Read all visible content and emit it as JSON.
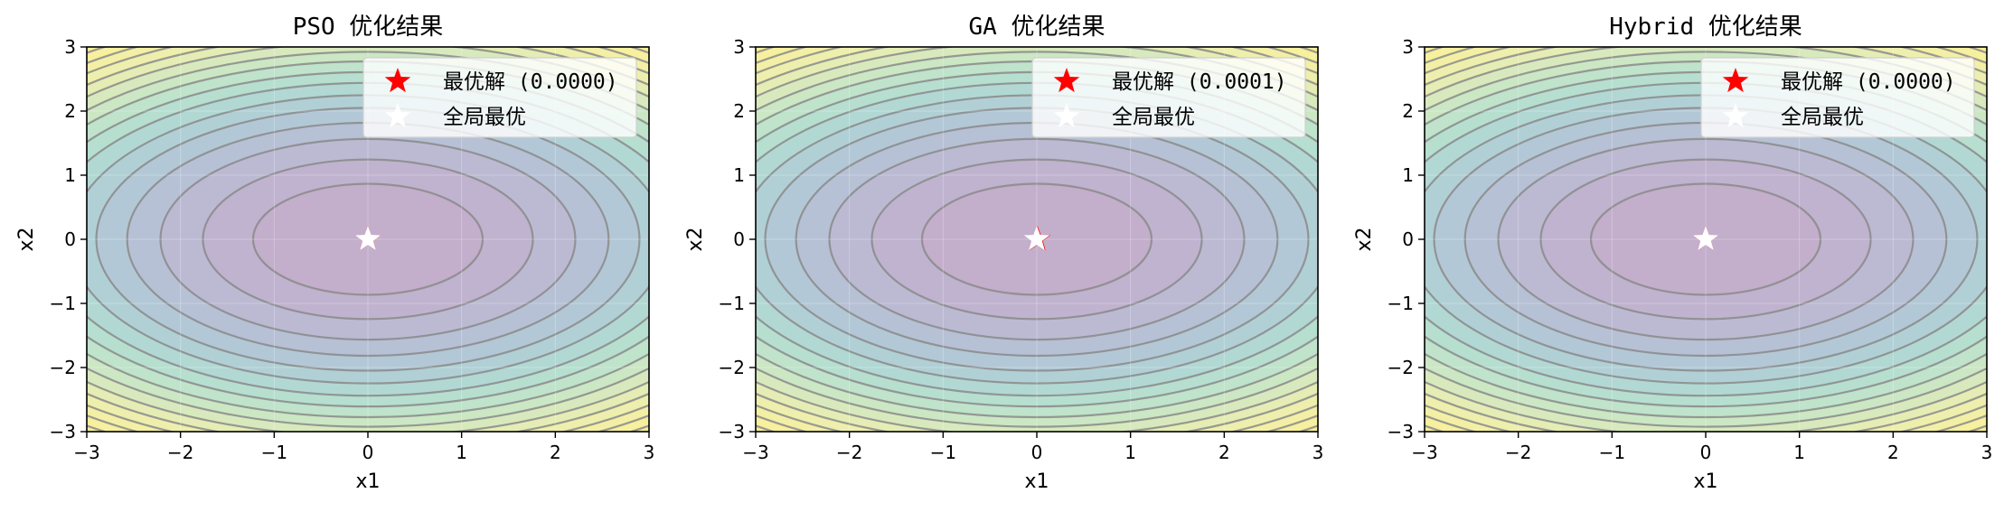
{
  "chart_data": [
    {
      "type": "contour",
      "title": "PSO 优化结果",
      "xlabel": "x1",
      "ylabel": "x2",
      "xlim": [
        -3,
        3
      ],
      "ylim": [
        -3,
        3
      ],
      "xticks": [
        "−3",
        "−2",
        "−1",
        "0",
        "1",
        "2",
        "3"
      ],
      "yticks": [
        "−3",
        "−2",
        "−1",
        "0",
        "1",
        "2",
        "3"
      ],
      "function": "x1^2 + 2*x2^2",
      "contour_levels": [
        1.5,
        3.1,
        4.9,
        6.6,
        8.4,
        10.1,
        11.9,
        13.6,
        15.4,
        17.1,
        18.9,
        20.6,
        22.4,
        24.1,
        25.9
      ],
      "grid": true,
      "legend_position": "top-right",
      "legend": [
        {
          "label": "最优解 (0.0000)",
          "color": "#ff0000",
          "marker": "star"
        },
        {
          "label": "全局最优",
          "color": "#ffffff",
          "marker": "star"
        }
      ],
      "best_solution": {
        "x": 0.0,
        "y": 0.0
      },
      "global_optimum": {
        "x": 0.0,
        "y": 0.0
      }
    },
    {
      "type": "contour",
      "title": "GA 优化结果",
      "xlabel": "x1",
      "ylabel": "x2",
      "xlim": [
        -3,
        3
      ],
      "ylim": [
        -3,
        3
      ],
      "xticks": [
        "−3",
        "−2",
        "−1",
        "0",
        "1",
        "2",
        "3"
      ],
      "yticks": [
        "−3",
        "−2",
        "−1",
        "0",
        "1",
        "2",
        "3"
      ],
      "function": "x1^2 + 2*x2^2",
      "contour_levels": [
        1.5,
        3.1,
        4.9,
        6.6,
        8.4,
        10.1,
        11.9,
        13.6,
        15.4,
        17.1,
        18.9,
        20.6,
        22.4,
        24.1,
        25.9
      ],
      "grid": true,
      "legend_position": "top-right",
      "legend": [
        {
          "label": "最优解 (0.0001)",
          "color": "#ff0000",
          "marker": "star"
        },
        {
          "label": "全局最优",
          "color": "#ffffff",
          "marker": "star"
        }
      ],
      "best_solution": {
        "x": 0.008,
        "y": 0.0
      },
      "global_optimum": {
        "x": 0.0,
        "y": 0.0
      }
    },
    {
      "type": "contour",
      "title": "Hybrid 优化结果",
      "xlabel": "x1",
      "ylabel": "x2",
      "xlim": [
        -3,
        3
      ],
      "ylim": [
        -3,
        3
      ],
      "xticks": [
        "−3",
        "−2",
        "−1",
        "0",
        "1",
        "2",
        "3"
      ],
      "yticks": [
        "−3",
        "−2",
        "−1",
        "0",
        "1",
        "2",
        "3"
      ],
      "function": "x1^2 + 2*x2^2",
      "contour_levels": [
        1.5,
        3.1,
        4.9,
        6.6,
        8.4,
        10.1,
        11.9,
        13.6,
        15.4,
        17.1,
        18.9,
        20.6,
        22.4,
        24.1,
        25.9
      ],
      "grid": true,
      "legend_position": "top-right",
      "legend": [
        {
          "label": "最优解 (0.0000)",
          "color": "#ff0000",
          "marker": "star"
        },
        {
          "label": "全局最优",
          "color": "#ffffff",
          "marker": "star"
        }
      ],
      "best_solution": {
        "x": 0.0,
        "y": 0.0
      },
      "global_optimum": {
        "x": 0.0,
        "y": 0.0
      }
    }
  ]
}
